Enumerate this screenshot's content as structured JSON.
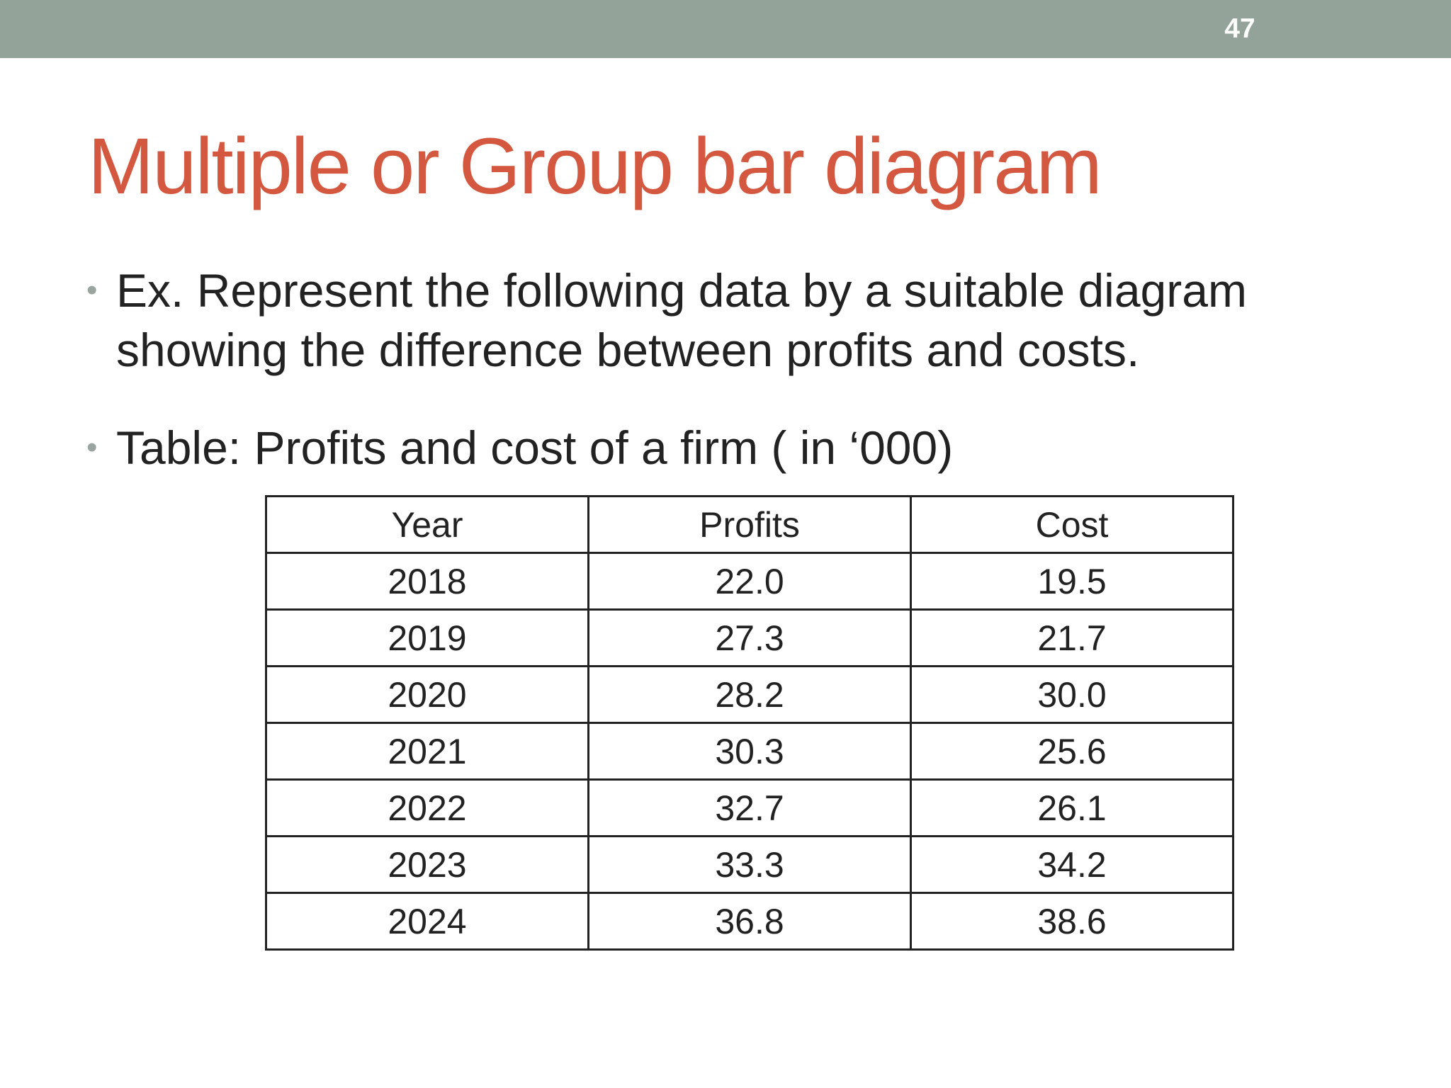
{
  "slide": {
    "number": "47",
    "title": "Multiple or Group bar diagram"
  },
  "bullets": [
    {
      "marker": "•",
      "text": "Ex. Represent the following data by a suitable diagram showing the difference between profits and costs."
    },
    {
      "marker": "•",
      "text": "Table: Profits and cost of a firm ( in ‘000)"
    }
  ],
  "table": {
    "headers": [
      "Year",
      "Profits",
      "Cost"
    ],
    "rows": [
      [
        "2018",
        "22.0",
        "19.5"
      ],
      [
        "2019",
        "27.3",
        "21.7"
      ],
      [
        "2020",
        "28.2",
        "30.0"
      ],
      [
        "2021",
        "30.3",
        "25.6"
      ],
      [
        "2022",
        "32.7",
        "26.1"
      ],
      [
        "2023",
        "33.3",
        "34.2"
      ],
      [
        "2024",
        "36.8",
        "38.6"
      ]
    ]
  },
  "colors": {
    "top_bar": "#93a39a",
    "title": "#d4573f",
    "text": "#222222",
    "bullet_marker": "#9aa59f"
  }
}
